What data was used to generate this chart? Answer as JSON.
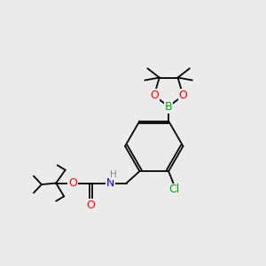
{
  "bg_color": "#ebebeb",
  "bond_color": "#000000",
  "atom_colors": {
    "O": "#ff0000",
    "B": "#00aa00",
    "N": "#0000bb",
    "Cl": "#00aa00",
    "H": "#888888",
    "C": "#000000"
  },
  "font_size_atom": 9,
  "font_size_small": 7,
  "line_width": 1.3
}
